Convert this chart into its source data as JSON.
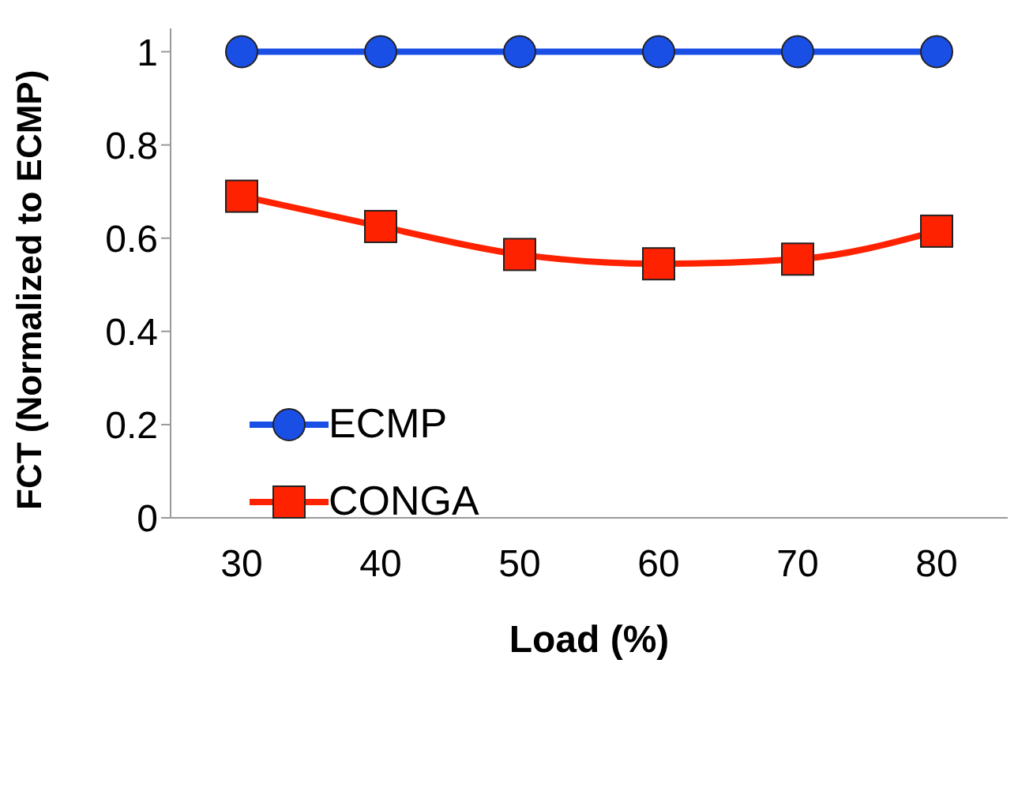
{
  "chart_data": {
    "type": "line",
    "xlabel": "Load (%)",
    "ylabel": "FCT (Normalized to ECMP)",
    "categories": [
      "30",
      "40",
      "50",
      "60",
      "70",
      "80"
    ],
    "series": [
      {
        "name": "ECMP",
        "color": "#1a4fe6",
        "values": [
          1,
          1,
          1,
          1,
          1,
          1
        ],
        "marker": "circle"
      },
      {
        "name": "CONGA",
        "color": "#ff2200",
        "values": [
          0.69,
          0.625,
          0.565,
          0.545,
          0.555,
          0.615
        ],
        "marker": "square"
      }
    ],
    "ylim": [
      0,
      1.05
    ],
    "yticks": [
      0,
      0.2,
      0.4,
      0.6,
      0.8,
      1
    ],
    "legend": "bottom left",
    "line_style": "solid"
  }
}
